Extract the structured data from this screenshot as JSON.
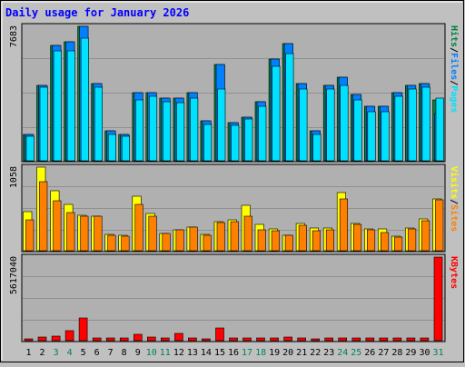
{
  "title": "Daily usage for January 2026",
  "colors": {
    "background": "#c0c0c0",
    "panel": "#b0b0b0",
    "hits": "#008040",
    "files": "#0080ff",
    "pages": "#00e0ff",
    "visits": "#ffff00",
    "sites": "#ff8000",
    "kbytes": "#ff0000",
    "title": "#0000ff",
    "weekend_label": "#00805c",
    "weekday_label": "#000000",
    "today_label": "#00805c",
    "separator": "#000000"
  },
  "chart_data": [
    {
      "type": "bar",
      "panel": "hits-files-pages",
      "max_label": "7683",
      "ylim": [
        0,
        7683
      ],
      "legend": [
        {
          "label": "Pages",
          "color": "#00e0ff"
        },
        {
          "label": "Files",
          "color": "#0080ff"
        },
        {
          "label": "Hits",
          "color": "#008040"
        }
      ],
      "categories": [
        "1",
        "2",
        "3",
        "4",
        "5",
        "6",
        "7",
        "8",
        "9",
        "10",
        "11",
        "12",
        "13",
        "14",
        "15",
        "16",
        "17",
        "18",
        "19",
        "20",
        "21",
        "22",
        "23",
        "24",
        "25",
        "26",
        "27",
        "28",
        "29",
        "30",
        "31"
      ],
      "series": [
        {
          "name": "Hits",
          "color": "#008040",
          "values": [
            1500,
            4300,
            6600,
            6800,
            7683,
            4400,
            1700,
            1500,
            3900,
            3900,
            3600,
            3600,
            3900,
            2300,
            5500,
            2200,
            2500,
            3400,
            5800,
            6700,
            4400,
            1700,
            4300,
            4800,
            3800,
            3100,
            3100,
            3900,
            4300,
            4400,
            3500
          ]
        },
        {
          "name": "Files",
          "color": "#0080ff",
          "values": [
            1500,
            4300,
            6600,
            6800,
            7683,
            4400,
            1700,
            1500,
            3900,
            3900,
            3600,
            3600,
            3900,
            2300,
            5500,
            2200,
            2500,
            3400,
            5800,
            6700,
            4400,
            1700,
            4300,
            4800,
            3800,
            3100,
            3100,
            3900,
            4300,
            4400,
            2700
          ]
        },
        {
          "name": "Pages",
          "color": "#00e0ff",
          "values": [
            1400,
            4200,
            6300,
            6300,
            7000,
            4200,
            1500,
            1400,
            3500,
            3700,
            3400,
            3300,
            3600,
            2100,
            4100,
            2000,
            2400,
            3100,
            5400,
            6100,
            4100,
            1500,
            4100,
            4300,
            3500,
            2800,
            2800,
            3700,
            4100,
            4200,
            3600
          ]
        }
      ]
    },
    {
      "type": "bar",
      "panel": "visits-sites",
      "max_label": "1058",
      "ylim": [
        0,
        1058
      ],
      "legend": [
        {
          "label": "Sites",
          "color": "#ff8000"
        },
        {
          "label": "Visits",
          "color": "#ffff00"
        }
      ],
      "categories": [
        "1",
        "2",
        "3",
        "4",
        "5",
        "6",
        "7",
        "8",
        "9",
        "10",
        "11",
        "12",
        "13",
        "14",
        "15",
        "16",
        "17",
        "18",
        "19",
        "20",
        "21",
        "22",
        "23",
        "24",
        "25",
        "26",
        "27",
        "28",
        "29",
        "30",
        "31"
      ],
      "series": [
        {
          "name": "Visits",
          "color": "#ffff00",
          "values": [
            500,
            1058,
            760,
            590,
            450,
            440,
            210,
            190,
            690,
            470,
            220,
            270,
            300,
            210,
            370,
            390,
            570,
            330,
            280,
            200,
            340,
            290,
            290,
            740,
            340,
            280,
            280,
            180,
            290,
            400,
            660
          ]
        },
        {
          "name": "Sites",
          "color": "#ff8000",
          "values": [
            390,
            870,
            630,
            480,
            440,
            440,
            200,
            180,
            590,
            440,
            220,
            260,
            300,
            200,
            360,
            370,
            440,
            260,
            250,
            190,
            320,
            250,
            260,
            650,
            330,
            270,
            230,
            170,
            280,
            380,
            640
          ]
        }
      ]
    },
    {
      "type": "bar",
      "panel": "kbytes",
      "max_label": "5617040",
      "ylim": [
        0,
        5617040
      ],
      "legend": [
        {
          "label": "KBytes",
          "color": "#ff0000"
        }
      ],
      "categories": [
        "1",
        "2",
        "3",
        "4",
        "5",
        "6",
        "7",
        "8",
        "9",
        "10",
        "11",
        "12",
        "13",
        "14",
        "15",
        "16",
        "17",
        "18",
        "19",
        "20",
        "21",
        "22",
        "23",
        "24",
        "25",
        "26",
        "27",
        "28",
        "29",
        "30",
        "31"
      ],
      "series": [
        {
          "name": "KBytes",
          "color": "#ff0000",
          "values": [
            60000,
            220000,
            310000,
            680000,
            1500000,
            180000,
            160000,
            210000,
            400000,
            270000,
            210000,
            470000,
            210000,
            140000,
            840000,
            160000,
            160000,
            210000,
            210000,
            240000,
            210000,
            60000,
            210000,
            210000,
            210000,
            210000,
            210000,
            210000,
            210000,
            210000,
            5617040
          ]
        }
      ]
    }
  ],
  "x_axis": {
    "labels": [
      "1",
      "2",
      "3",
      "4",
      "5",
      "6",
      "7",
      "8",
      "9",
      "10",
      "11",
      "12",
      "13",
      "14",
      "15",
      "16",
      "17",
      "18",
      "19",
      "20",
      "21",
      "22",
      "23",
      "24",
      "25",
      "26",
      "27",
      "28",
      "29",
      "30",
      "31"
    ],
    "weekend_days": [
      "3",
      "4",
      "10",
      "11",
      "17",
      "18",
      "24",
      "25",
      "31"
    ]
  }
}
